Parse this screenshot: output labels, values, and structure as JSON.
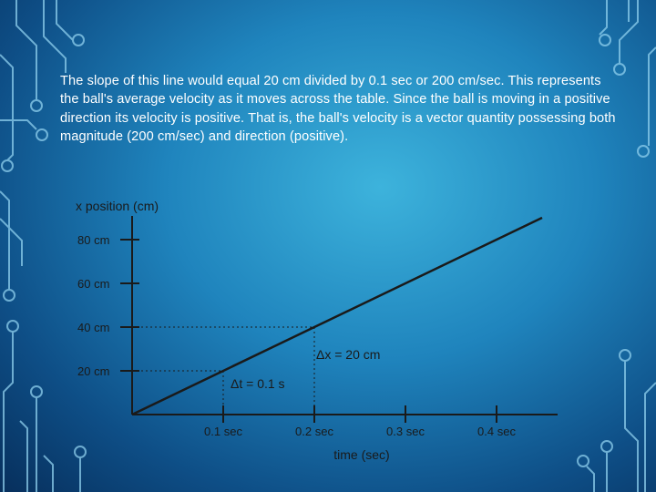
{
  "slide": {
    "paragraph": "The slope of this line would equal 20 cm divided by 0.1 sec or 200 cm/sec. This represents the ball's average velocity as it moves across the table. Since the ball is moving in a positive direction its velocity is positive. That is, the ball's velocity is a vector quantity possessing both magnitude (200 cm/sec) and direction (positive)."
  },
  "chart_data": {
    "type": "line",
    "title": "",
    "ylabel": "x position (cm)",
    "xlabel": "time (sec)",
    "xlim": [
      0,
      0.45
    ],
    "ylim": [
      0,
      100
    ],
    "x_ticks": [
      0.1,
      0.2,
      0.3,
      0.4
    ],
    "x_tick_labels": [
      "0.1 sec",
      "0.2 sec",
      "0.3 sec",
      "0.4 sec"
    ],
    "y_ticks": [
      20,
      40,
      60,
      80
    ],
    "y_tick_labels": [
      "20 cm",
      "40 cm",
      "60 cm",
      "80 cm"
    ],
    "series": [
      {
        "x": [
          0,
          0.45
        ],
        "y": [
          0,
          90
        ]
      }
    ],
    "annotations": {
      "delta_x": "Δx = 20 cm",
      "delta_t": "Δt = 0.1 s",
      "reference_points": [
        {
          "x": 0.1,
          "y": 20
        },
        {
          "x": 0.2,
          "y": 40
        }
      ]
    },
    "grid": false,
    "line_color": "#1a1a1a"
  }
}
